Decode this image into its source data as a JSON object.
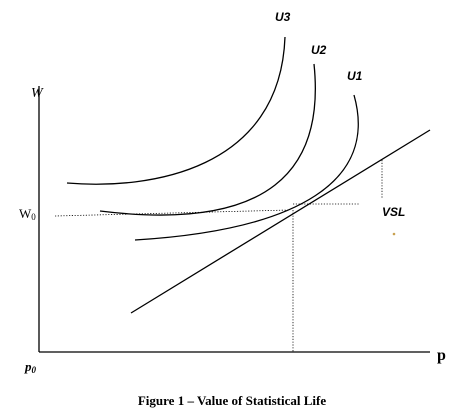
{
  "figure": {
    "caption": "Figure 1 – Value of Statistical Life",
    "axes": {
      "y_label": "W",
      "x_label": "p",
      "y_tick_label": "W",
      "y_tick_subscript": "0",
      "origin_label": "p",
      "origin_subscript": "0"
    },
    "curves": {
      "u3_label": "U3",
      "u2_label": "U2",
      "u1_label": "U1"
    },
    "annotation": {
      "vsl_label": "VSL"
    }
  }
}
